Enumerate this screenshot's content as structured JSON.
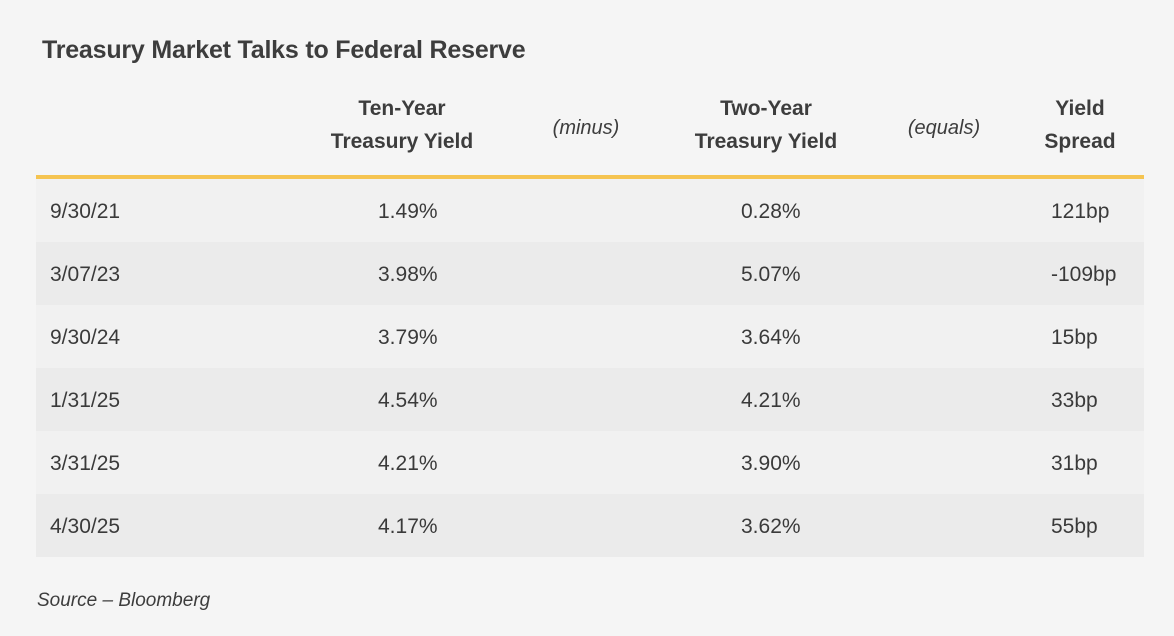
{
  "chart_data": {
    "type": "table",
    "title": "Treasury Market Talks to Federal Reserve",
    "columns": {
      "date": "",
      "ten_year": [
        "Ten-Year",
        "Treasury Yield"
      ],
      "minus": "(minus)",
      "two_year": [
        "Two-Year",
        "Treasury Yield"
      ],
      "equals": "(equals)",
      "spread": [
        "Yield",
        "Spread"
      ]
    },
    "rows": [
      {
        "date": "9/30/21",
        "ten_year": "1.49%",
        "two_year": "0.28%",
        "spread": "121bp"
      },
      {
        "date": "3/07/23",
        "ten_year": "3.98%",
        "two_year": "5.07%",
        "spread": "-109bp"
      },
      {
        "date": "9/30/24",
        "ten_year": "3.79%",
        "two_year": "3.64%",
        "spread": "15bp"
      },
      {
        "date": "1/31/25",
        "ten_year": "4.54%",
        "two_year": "4.21%",
        "spread": "33bp"
      },
      {
        "date": "3/31/25",
        "ten_year": "4.21%",
        "two_year": "3.90%",
        "spread": "31bp"
      },
      {
        "date": "4/30/25",
        "ten_year": "4.17%",
        "two_year": "3.62%",
        "spread": "55bp"
      }
    ],
    "source": "Source – Bloomberg",
    "colors": {
      "header_rule": "#f5c451",
      "row_light": "#f1f1f1",
      "row_dark": "#ebebeb",
      "text": "#3a3a3a"
    }
  }
}
